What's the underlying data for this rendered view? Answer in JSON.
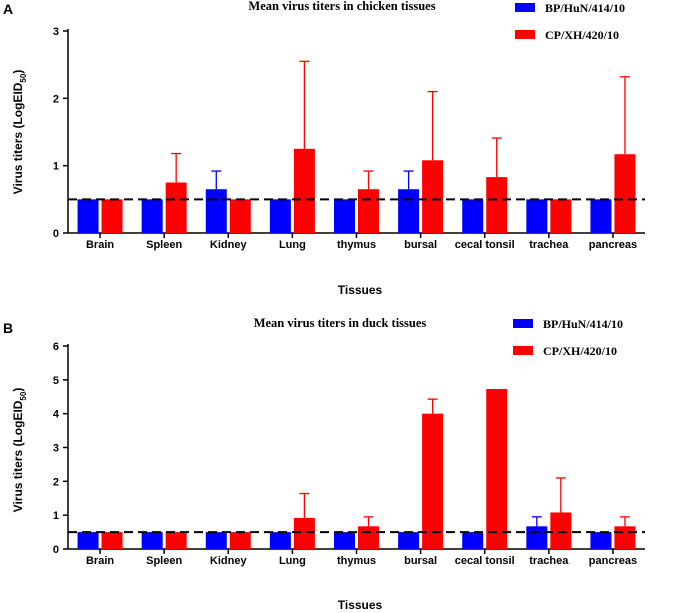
{
  "chart_data": [
    {
      "panel": "A",
      "type": "bar",
      "title": "Mean virus titers in chicken tissues",
      "xlabel": "Tissues",
      "ylabel": "Virus titers (LogEID",
      "ylabel_sub": "50",
      "ylabel_close": ")",
      "ylim": [
        0,
        3
      ],
      "yticks": [
        0,
        1,
        2,
        3
      ],
      "reference_line": 0.5,
      "categories": [
        "Brain",
        "Spleen",
        "Kidney",
        "Lung",
        "thymus",
        "bursal",
        "cecal tonsil",
        "trachea",
        "pancreas"
      ],
      "series": [
        {
          "name": "BP/HuN/414/10",
          "color": "#0000ff",
          "values": [
            0.5,
            0.5,
            0.65,
            0.5,
            0.5,
            0.65,
            0.5,
            0.5,
            0.5
          ],
          "errors": [
            0,
            0,
            0.27,
            0,
            0,
            0.27,
            0,
            0,
            0
          ]
        },
        {
          "name": "CP/XH/420/10",
          "color": "#ff0000",
          "values": [
            0.5,
            0.75,
            0.5,
            1.25,
            0.65,
            1.08,
            0.83,
            0.5,
            1.17
          ],
          "errors": [
            0,
            0.43,
            0,
            1.3,
            0.27,
            1.02,
            0.58,
            0,
            1.15
          ]
        }
      ]
    },
    {
      "panel": "B",
      "type": "bar",
      "title": "Mean virus titers in duck tissues",
      "xlabel": "Tissues",
      "ylabel": "Virus titers (LogEID",
      "ylabel_sub": "50",
      "ylabel_close": ")",
      "ylim": [
        0,
        6
      ],
      "yticks": [
        0,
        1,
        2,
        3,
        4,
        5,
        6
      ],
      "reference_line": 0.5,
      "categories": [
        "Brain",
        "Spleen",
        "Kidney",
        "Lung",
        "thymus",
        "bursal",
        "cecal tonsil",
        "trachea",
        "pancreas"
      ],
      "series": [
        {
          "name": "BP/HuN/414/10",
          "color": "#0000ff",
          "values": [
            0.5,
            0.5,
            0.5,
            0.5,
            0.5,
            0.5,
            0.5,
            0.67,
            0.5
          ],
          "errors": [
            0,
            0,
            0,
            0,
            0,
            0,
            0,
            0.28,
            0
          ]
        },
        {
          "name": "CP/XH/420/10",
          "color": "#ff0000",
          "values": [
            0.5,
            0.5,
            0.5,
            0.92,
            0.67,
            4.0,
            4.73,
            1.08,
            0.67
          ],
          "errors": [
            0,
            0,
            0,
            0.72,
            0.28,
            0.43,
            0,
            1.02,
            0.28
          ]
        }
      ]
    }
  ]
}
